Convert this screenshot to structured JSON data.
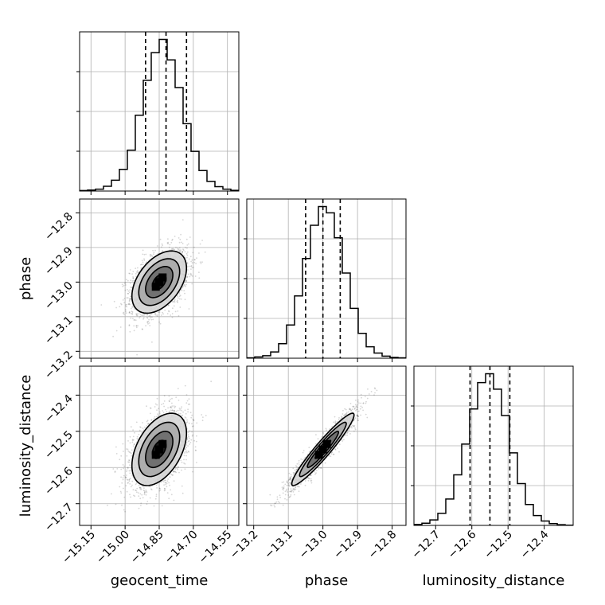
{
  "chart_data": {
    "type": "corner",
    "parameters": [
      "geocent_time",
      "phase",
      "luminosity_distance"
    ],
    "axis_labels": {
      "geocent_time": "geocent_time",
      "phase": "phase",
      "luminosity_distance": "luminosity_distance"
    },
    "ranges": {
      "geocent_time": [
        -15.2,
        -14.5
      ],
      "phase": [
        -13.22,
        -12.76
      ],
      "luminosity_distance": [
        -12.76,
        -12.32
      ]
    },
    "ticks": {
      "geocent_time": [
        "-15.15",
        "-15.00",
        "-14.85",
        "-14.70",
        "-14.55"
      ],
      "phase": [
        "-13.2",
        "-13.1",
        "-13.0",
        "-12.9",
        "-12.8"
      ],
      "luminosity_distance": [
        "-12.7",
        "-12.6",
        "-12.5",
        "-12.4"
      ]
    },
    "quantiles": {
      "geocent_time": [
        -14.91,
        -14.82,
        -14.73
      ],
      "phase": [
        -13.05,
        -13.0,
        -12.95
      ],
      "luminosity_distance": [
        -12.605,
        -12.55,
        -12.495
      ]
    },
    "histograms": {
      "geocent_time": {
        "bin_edges": [
          -15.2,
          -15.165,
          -15.13,
          -15.095,
          -15.06,
          -15.025,
          -14.99,
          -14.955,
          -14.92,
          -14.885,
          -14.85,
          -14.815,
          -14.78,
          -14.745,
          -14.71,
          -14.675,
          -14.64,
          -14.605,
          -14.57,
          -14.535,
          -14.5
        ],
        "counts": [
          2,
          4,
          8,
          20,
          45,
          90,
          170,
          315,
          460,
          575,
          630,
          545,
          430,
          280,
          165,
          85,
          40,
          18,
          8,
          3
        ]
      },
      "phase": {
        "bin_edges": [
          -13.22,
          -13.197,
          -13.174,
          -13.151,
          -13.128,
          -13.105,
          -13.082,
          -13.059,
          -13.036,
          -13.013,
          -12.99,
          -12.967,
          -12.944,
          -12.921,
          -12.898,
          -12.875,
          -12.852,
          -12.829,
          -12.806,
          -12.783,
          -12.76
        ],
        "counts": [
          2,
          6,
          12,
          30,
          70,
          160,
          300,
          480,
          640,
          730,
          700,
          580,
          410,
          240,
          120,
          55,
          25,
          10,
          4,
          2
        ]
      },
      "luminosity_distance": {
        "bin_edges": [
          -12.76,
          -12.738,
          -12.716,
          -12.694,
          -12.672,
          -12.65,
          -12.628,
          -12.606,
          -12.584,
          -12.562,
          -12.54,
          -12.518,
          -12.496,
          -12.474,
          -12.452,
          -12.43,
          -12.408,
          -12.386,
          -12.364,
          -12.342,
          -12.32
        ],
        "counts": [
          4,
          10,
          25,
          55,
          120,
          230,
          370,
          530,
          650,
          690,
          620,
          500,
          330,
          190,
          95,
          45,
          20,
          8,
          3,
          1
        ]
      }
    },
    "joint": [
      {
        "x": "geocent_time",
        "y": "phase",
        "center": [
          -14.85,
          -13.0
        ],
        "sigma": [
          0.06,
          0.045
        ],
        "rho": 0.45
      },
      {
        "x": "geocent_time",
        "y": "luminosity_distance",
        "center": [
          -14.85,
          -12.55
        ],
        "sigma": [
          0.06,
          0.05
        ],
        "rho": 0.45
      },
      {
        "x": "phase",
        "y": "luminosity_distance",
        "center": [
          -13.0,
          -12.55
        ],
        "sigma": [
          0.045,
          0.05
        ],
        "rho": 0.95
      }
    ],
    "contour_levels_sigma": [
      0.5,
      1.0,
      1.5,
      2.0
    ],
    "grid": true
  }
}
